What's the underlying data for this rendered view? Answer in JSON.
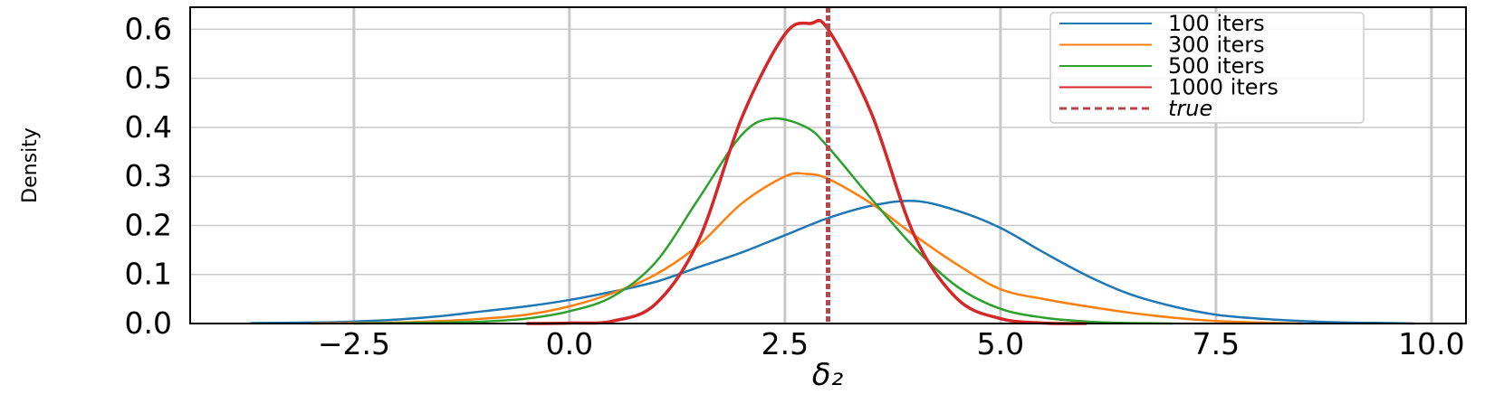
{
  "chart_data": {
    "type": "line",
    "title": "",
    "xlabel": "δ₂",
    "ylabel": "Density",
    "xlim": [
      -4.4,
      10.4
    ],
    "ylim": [
      0.0,
      0.645
    ],
    "x_ticks": [
      -2.5,
      0.0,
      2.5,
      5.0,
      7.5,
      10.0
    ],
    "x_tick_labels": [
      "−2.5",
      "0.0",
      "2.5",
      "5.0",
      "7.5",
      "10.0"
    ],
    "y_ticks": [
      0.0,
      0.1,
      0.2,
      0.3,
      0.4,
      0.5,
      0.6
    ],
    "y_tick_labels": [
      "0.0",
      "0.1",
      "0.2",
      "0.3",
      "0.4",
      "0.5",
      "0.6"
    ],
    "grid": true,
    "legend": "top-right",
    "series": [
      {
        "name": "100 iters",
        "color": "#1f77b4",
        "x": [
          -3.7,
          -3.0,
          -2.5,
          -2.0,
          -1.5,
          -1.0,
          -0.5,
          0.0,
          0.5,
          1.0,
          1.5,
          2.0,
          2.5,
          3.0,
          3.5,
          4.0,
          4.5,
          5.0,
          5.5,
          6.0,
          6.5,
          7.0,
          7.5,
          8.0,
          8.5,
          9.0,
          9.5,
          9.8
        ],
        "y": [
          0.001,
          0.002,
          0.004,
          0.008,
          0.015,
          0.025,
          0.035,
          0.048,
          0.065,
          0.085,
          0.115,
          0.145,
          0.18,
          0.215,
          0.24,
          0.25,
          0.23,
          0.195,
          0.145,
          0.098,
          0.06,
          0.035,
          0.018,
          0.01,
          0.005,
          0.002,
          0.001,
          0.0
        ]
      },
      {
        "name": "300 iters",
        "color": "#ff7f0e",
        "x": [
          -3.0,
          -2.5,
          -2.0,
          -1.5,
          -1.0,
          -0.5,
          0.0,
          0.5,
          1.0,
          1.5,
          2.0,
          2.5,
          2.75,
          3.0,
          3.5,
          4.0,
          4.5,
          5.0,
          5.5,
          6.0,
          6.5,
          7.0,
          7.5,
          8.0,
          8.5
        ],
        "y": [
          0.0,
          0.001,
          0.002,
          0.005,
          0.01,
          0.018,
          0.035,
          0.062,
          0.1,
          0.16,
          0.245,
          0.3,
          0.305,
          0.295,
          0.245,
          0.18,
          0.12,
          0.07,
          0.05,
          0.035,
          0.022,
          0.012,
          0.005,
          0.002,
          0.0
        ]
      },
      {
        "name": "500 iters",
        "color": "#2ca02c",
        "x": [
          -2.5,
          -2.0,
          -1.5,
          -1.0,
          -0.5,
          0.0,
          0.5,
          1.0,
          1.5,
          2.0,
          2.35,
          2.75,
          3.0,
          3.5,
          4.0,
          4.5,
          5.0,
          5.5,
          6.0,
          6.5,
          7.0
        ],
        "y": [
          0.0,
          0.001,
          0.002,
          0.004,
          0.01,
          0.025,
          0.055,
          0.125,
          0.255,
          0.385,
          0.418,
          0.4,
          0.36,
          0.255,
          0.155,
          0.075,
          0.03,
          0.012,
          0.004,
          0.001,
          0.0
        ]
      },
      {
        "name": "1000 iters",
        "color": "#d62728",
        "x": [
          -0.5,
          0.0,
          0.5,
          1.0,
          1.5,
          2.0,
          2.5,
          2.8,
          3.0,
          3.5,
          4.0,
          4.5,
          5.0,
          5.5,
          6.0
        ],
        "y": [
          0.0,
          0.001,
          0.005,
          0.04,
          0.17,
          0.42,
          0.59,
          0.612,
          0.6,
          0.43,
          0.18,
          0.05,
          0.01,
          0.001,
          0.0
        ]
      }
    ],
    "reference_line": {
      "name": "true",
      "x": 3.0,
      "color": "#b5464a",
      "style": "dashed"
    }
  }
}
